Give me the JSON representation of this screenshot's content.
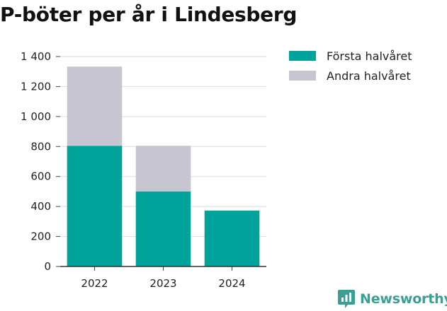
{
  "chart_data": {
    "type": "bar",
    "stacked": true,
    "title": "P-böter per år i Lindesberg",
    "categories": [
      "2022",
      "2023",
      "2024"
    ],
    "series": [
      {
        "name": "Första halvåret",
        "values": [
          805,
          500,
          373
        ],
        "color": "#00a39a"
      },
      {
        "name": "Andra halvåret",
        "values": [
          528,
          305,
          0
        ],
        "color": "#c6c5d1"
      }
    ],
    "y_ticks": [
      0,
      200,
      400,
      600,
      800,
      1000,
      1200,
      1400
    ],
    "y_tick_labels": [
      "0",
      "200",
      "400",
      "600",
      "800",
      "1 000",
      "1 200",
      "1 400"
    ],
    "ylim": [
      0,
      1400
    ],
    "grid": true,
    "legend_position": "top-right"
  },
  "brand": {
    "name": "Newsworthy",
    "icon": "newsworthy-logo-icon",
    "color": "#3aa093"
  }
}
